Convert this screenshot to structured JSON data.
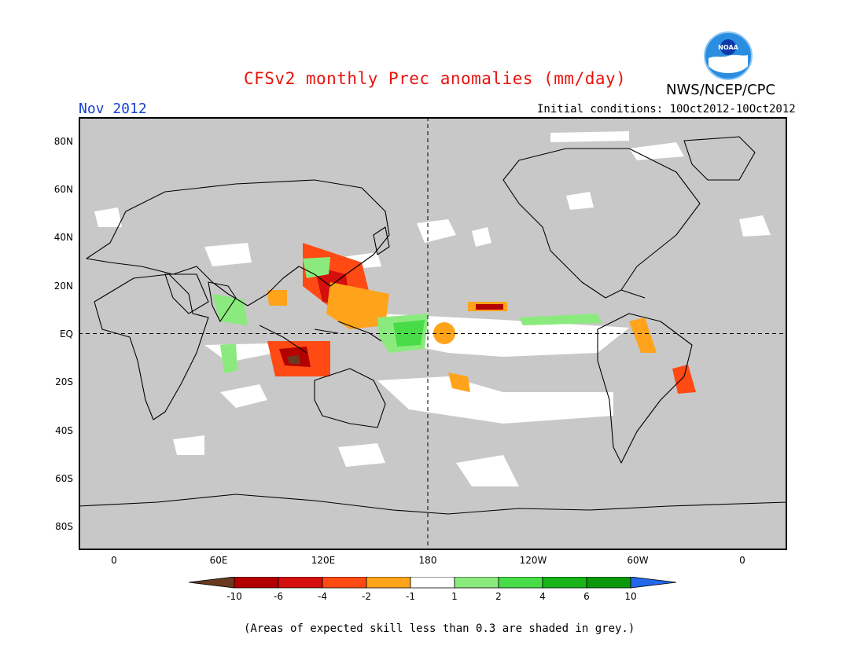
{
  "title": "CFSv2 monthly Prec anomalies (mm/day)",
  "valid_month": "Nov 2012",
  "initial_conditions": "Initial conditions: 10Oct2012-10Oct2012",
  "agency": "NWS/NCEP/CPC",
  "logo_text": "NOAA",
  "map": {
    "projection": "cylindrical equidistant",
    "lon_range": [
      -20,
      380
    ],
    "lat_range": [
      -90,
      90
    ],
    "lat_labels": [
      "80N",
      "60N",
      "40N",
      "20N",
      "EQ",
      "20S",
      "40S",
      "60S",
      "80S"
    ],
    "lon_labels": [
      "0",
      "60E",
      "120E",
      "180",
      "120W",
      "60W",
      "0"
    ],
    "background_grey": "#c8c8c8",
    "reference_lines": [
      "EQ",
      "180"
    ]
  },
  "colorbar": {
    "labels": [
      "-10",
      "-6",
      "-4",
      "-2",
      "-1",
      "1",
      "2",
      "4",
      "6",
      "10"
    ],
    "colors": [
      "#6b3a1e",
      "#b30000",
      "#d50e0e",
      "#ff4a14",
      "#ffa31a",
      "#ffffff",
      "#8bea7d",
      "#48dd48",
      "#18b418",
      "#0a970a",
      "#2268e8"
    ]
  },
  "footnote": "(Areas of expected skill less than 0.3 are shaded in grey.)"
}
